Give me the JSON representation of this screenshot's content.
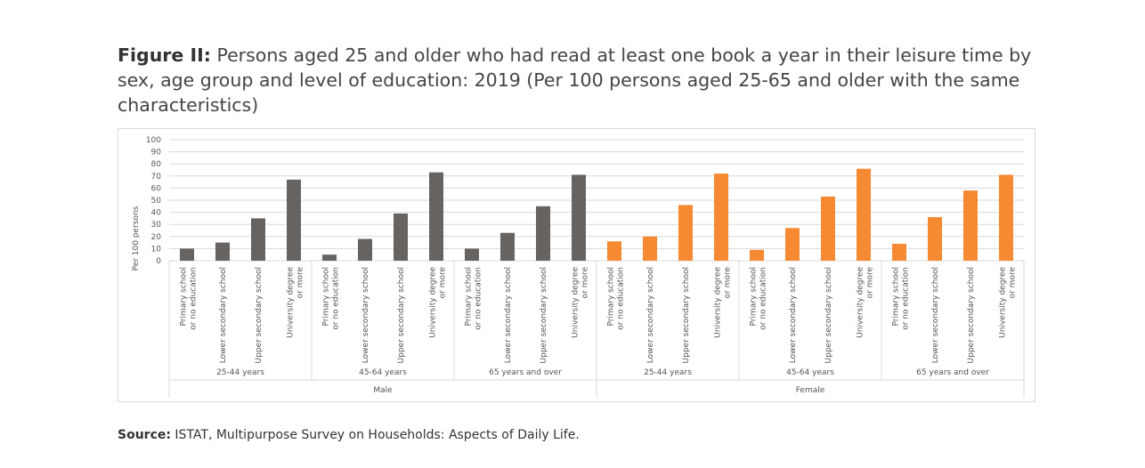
{
  "chart_data": {
    "type": "bar",
    "title_label": "Figure II:",
    "title": "Persons aged 25 and older who had read at least one book a year in their leisure time by sex, age group and level of education: 2019 (Per 100 persons aged 25-65 and older with the same characteristics)",
    "ylabel": "Per 100 persons",
    "categories": [
      "Primary school or no education",
      "Lower secondary school",
      "Upper secondary school",
      "University degree or more",
      "Primary school or no education",
      "Lower secondary school",
      "Upper secondary school",
      "University degree or more",
      "Primary school or no education",
      "Lower secondary school",
      "Upper secondary school",
      "University degree or more",
      "Primary school or no education",
      "Lower secondary school",
      "Upper secondary school",
      "University degree or more",
      "Primary school or no education",
      "Lower secondary school",
      "Upper secondary school",
      "University degree or more",
      "Primary school or no education",
      "Lower secondary school",
      "Upper secondary school",
      "University degree or more"
    ],
    "age_groups": [
      "25-44 years",
      "45-64 years",
      "65 years and over",
      "25-44 years",
      "45-64 years",
      "65 years and over"
    ],
    "sexes": [
      "Male",
      "Female"
    ],
    "colors": [
      "#676361",
      "#f58a32"
    ],
    "values": [
      10,
      15,
      35,
      67,
      5,
      18,
      39,
      73,
      10,
      23,
      45,
      71,
      16,
      20,
      46,
      72,
      9,
      27,
      53,
      76,
      14,
      36,
      58,
      71
    ],
    "ylim": [
      0,
      100
    ],
    "yticks": [
      0,
      10,
      20,
      30,
      40,
      50,
      60,
      70,
      80,
      90,
      100
    ],
    "grid": true,
    "source_label": "Source:",
    "source": "ISTAT, Multipurpose Survey on Households: Aspects of Daily Life."
  }
}
